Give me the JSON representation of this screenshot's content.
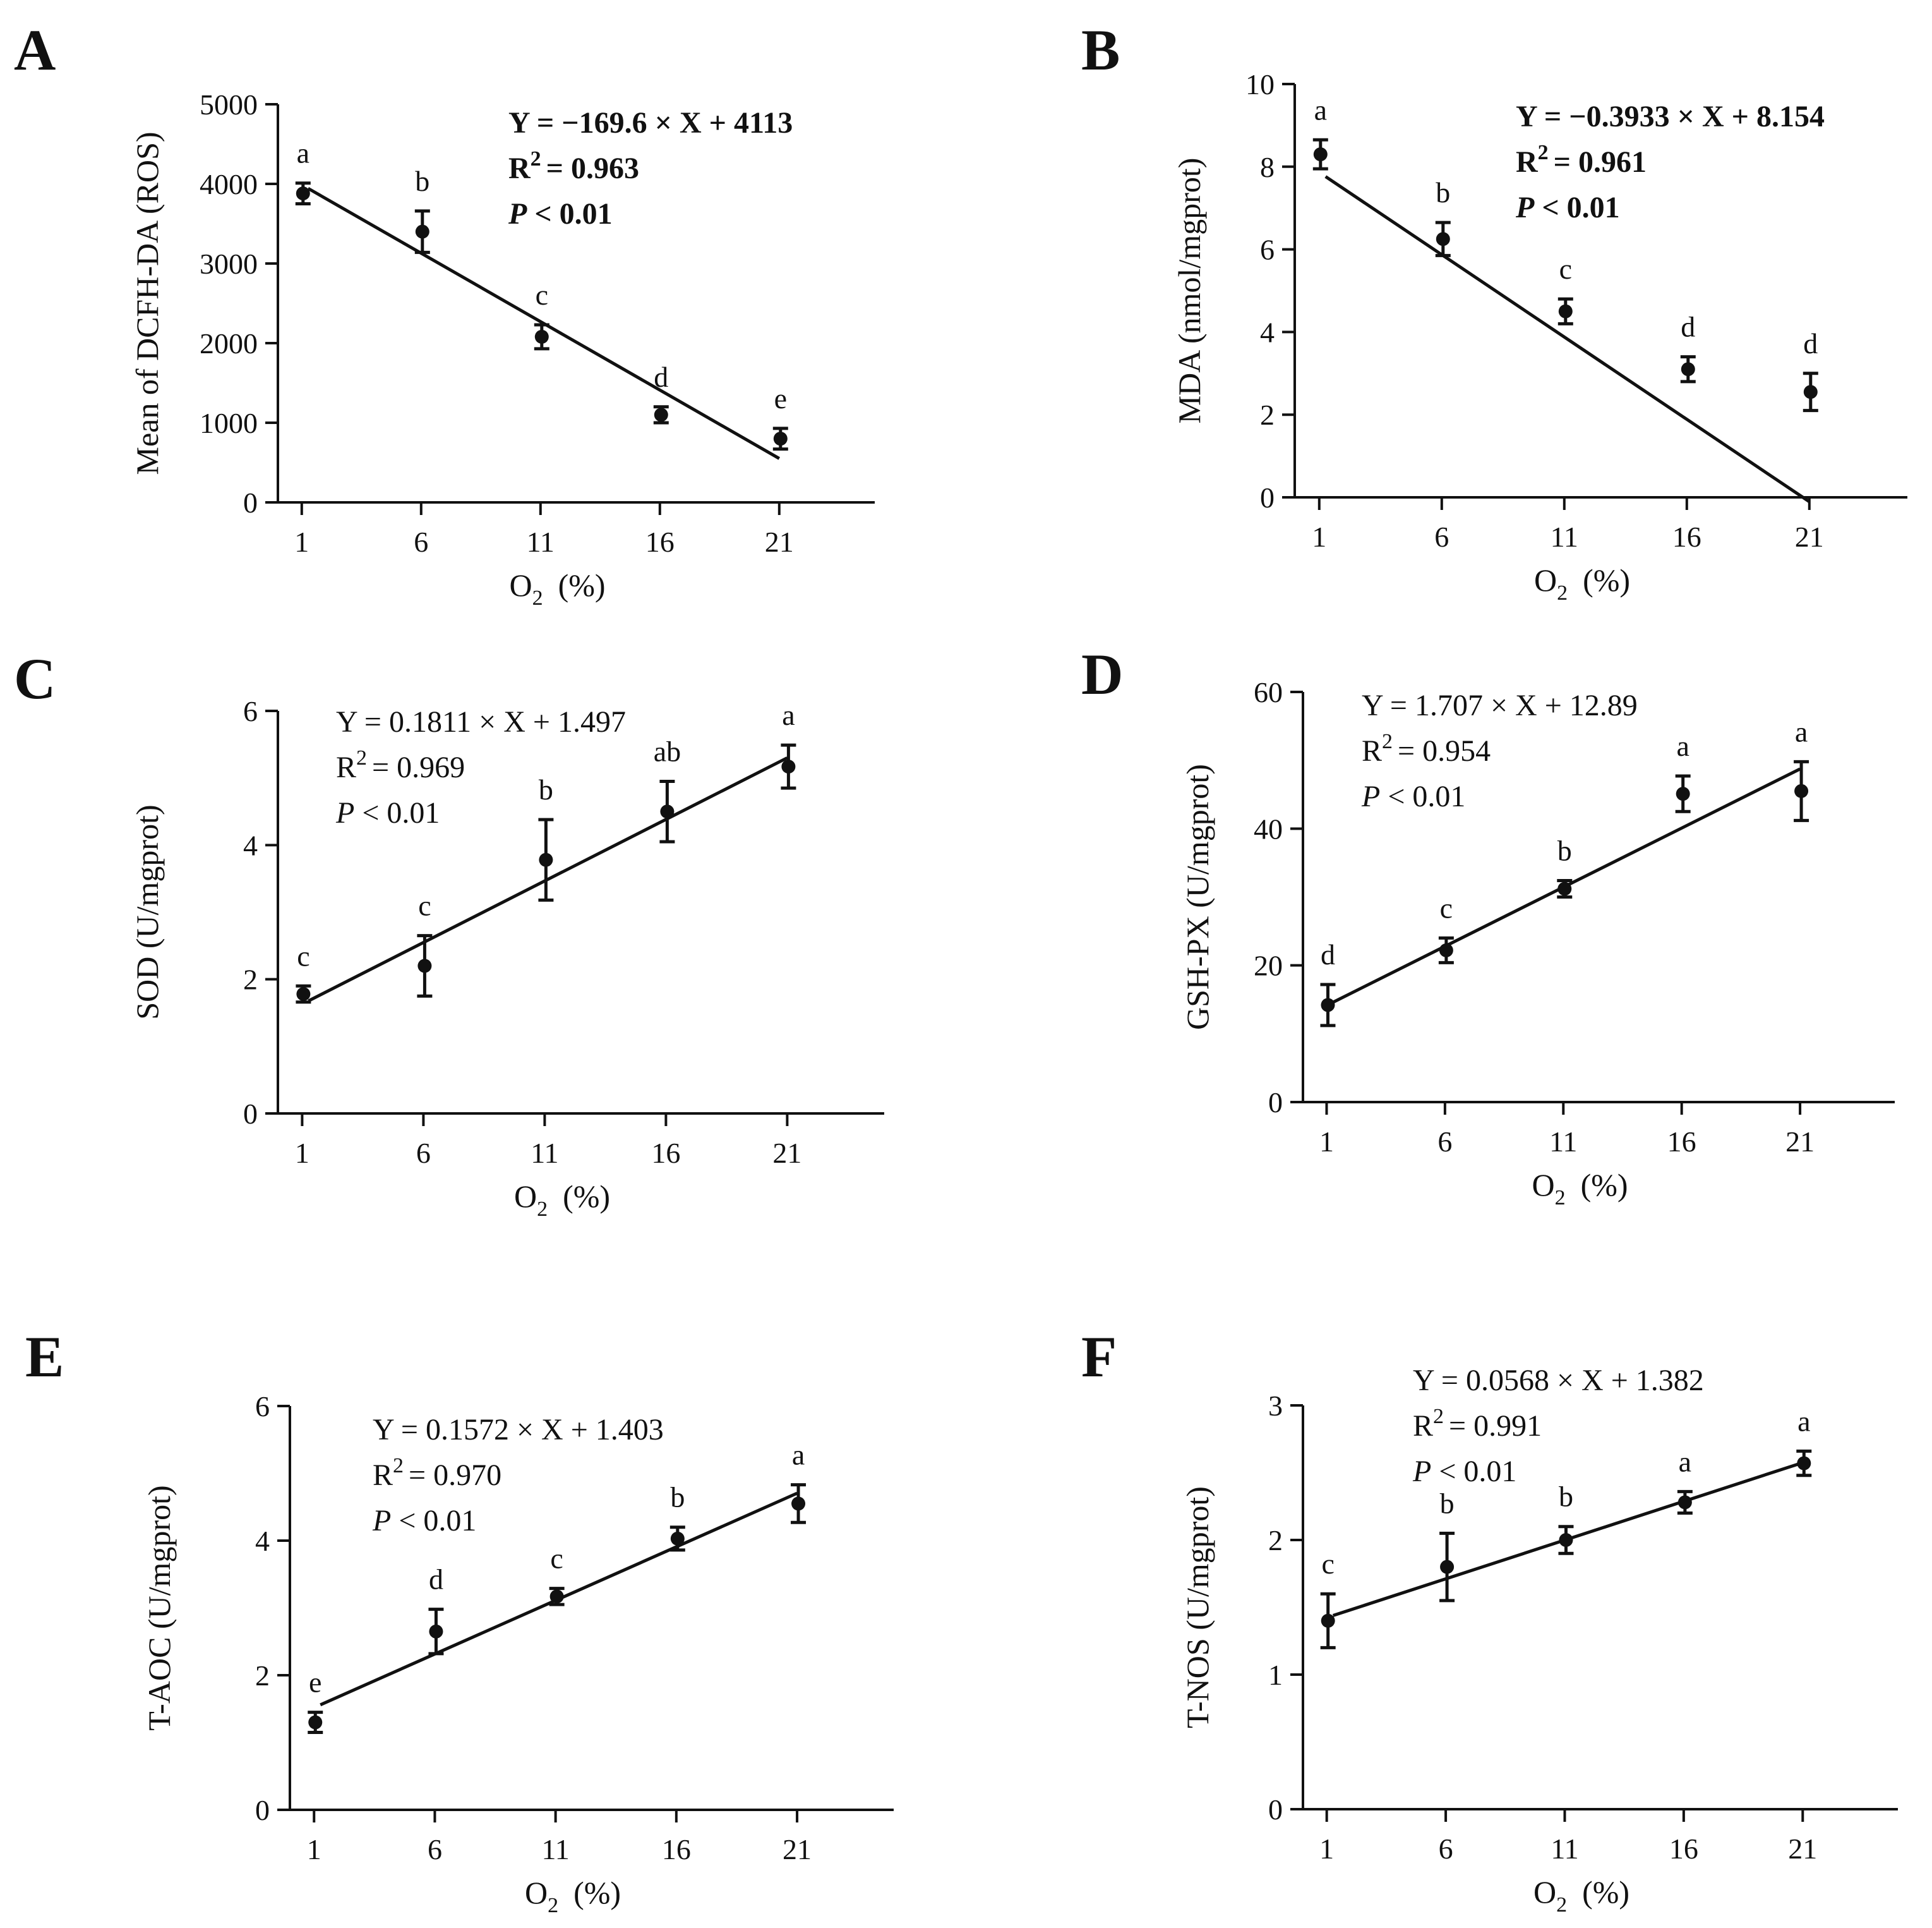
{
  "chart_data": [
    {
      "type": "scatter",
      "panel": "A",
      "ylabel": "Mean of DCFH-DA (ROS)",
      "xlabel": "O",
      "xlabel_sub": "2",
      "xlabel_unit": "(%)",
      "x": [
        1,
        6,
        11,
        16,
        21
      ],
      "xticks": [
        "1",
        "6",
        "11",
        "16",
        "21"
      ],
      "xlim": [
        0,
        25
      ],
      "ylim": [
        0,
        5000
      ],
      "yticks": [
        0,
        1000,
        2000,
        3000,
        4000,
        5000
      ],
      "ytick_labels": [
        "0",
        "1000",
        "2000",
        "3000",
        "4000",
        "5000"
      ],
      "series": [
        {
          "name": "mean",
          "values": [
            3880,
            3400,
            2080,
            1100,
            800
          ],
          "errors": [
            130,
            260,
            150,
            100,
            130
          ]
        }
      ],
      "letters": [
        "a",
        "b",
        "c",
        "d",
        "e"
      ],
      "fit": {
        "slope": -169.6,
        "intercept": 4113
      },
      "equation": {
        "eq": "Y = −169.6 × X + 4113",
        "r_lead": "R",
        "r_sup": "2",
        "r_val": "= 0.963",
        "p_var": "P",
        "p_rest": " < 0.01",
        "bold": true
      }
    },
    {
      "type": "scatter",
      "panel": "B",
      "ylabel": "MDA (nmol/mgprot)",
      "xlabel": "O",
      "xlabel_sub": "2",
      "xlabel_unit": "(%)",
      "x": [
        1,
        6,
        11,
        16,
        21
      ],
      "xticks": [
        "1",
        "6",
        "11",
        "16",
        "21"
      ],
      "xlim": [
        0,
        25
      ],
      "ylim": [
        0,
        10
      ],
      "yticks": [
        0,
        2,
        4,
        6,
        8,
        10
      ],
      "ytick_labels": [
        "0",
        "2",
        "4",
        "6",
        "8",
        "10"
      ],
      "series": [
        {
          "name": "mean",
          "values": [
            8.3,
            6.25,
            4.5,
            3.1,
            2.55
          ],
          "errors": [
            0.35,
            0.4,
            0.3,
            0.3,
            0.45
          ]
        }
      ],
      "letters": [
        "a",
        "b",
        "c",
        "d",
        "d"
      ],
      "fit": {
        "slope": -0.3933,
        "intercept": 8.154
      },
      "equation": {
        "eq": "Y = −0.3933 × X + 8.154",
        "r_lead": "R",
        "r_sup": "2",
        "r_val": "= 0.961",
        "p_var": "P",
        "p_rest": " < 0.01",
        "bold": true
      }
    },
    {
      "type": "scatter",
      "panel": "C",
      "ylabel": "SOD (U/mgprot)",
      "xlabel": "O",
      "xlabel_sub": "2",
      "xlabel_unit": "(%)",
      "x": [
        1,
        6,
        11,
        16,
        21
      ],
      "xticks": [
        "1",
        "6",
        "11",
        "16",
        "21"
      ],
      "xlim": [
        0,
        25
      ],
      "ylim": [
        0,
        6
      ],
      "yticks": [
        0,
        2,
        4,
        6
      ],
      "ytick_labels": [
        "0",
        "2",
        "4",
        "6"
      ],
      "series": [
        {
          "name": "mean",
          "values": [
            1.78,
            2.2,
            3.78,
            4.5,
            5.17
          ],
          "errors": [
            0.12,
            0.45,
            0.6,
            0.45,
            0.32
          ]
        }
      ],
      "letters": [
        "c",
        "c",
        "b",
        "ab",
        "a"
      ],
      "fit": {
        "slope": 0.1811,
        "intercept": 1.497
      },
      "equation": {
        "eq": "Y = 0.1811 × X + 1.497",
        "r_lead": "R",
        "r_sup": "2",
        "r_val": "= 0.969",
        "p_var": "P",
        "p_rest": " < 0.01",
        "bold": false
      }
    },
    {
      "type": "scatter",
      "panel": "D",
      "ylabel": "GSH-PX (U/mgprot)",
      "xlabel": "O",
      "xlabel_sub": "2",
      "xlabel_unit": "(%)",
      "x": [
        1,
        6,
        11,
        16,
        21
      ],
      "xticks": [
        "1",
        "6",
        "11",
        "16",
        "21"
      ],
      "xlim": [
        0,
        25
      ],
      "ylim": [
        0,
        60
      ],
      "yticks": [
        0,
        20,
        40,
        60
      ],
      "ytick_labels": [
        "0",
        "20",
        "40",
        "60"
      ],
      "series": [
        {
          "name": "mean",
          "values": [
            14.2,
            22.2,
            31.2,
            45.1,
            45.5
          ],
          "errors": [
            3.0,
            1.8,
            1.2,
            2.6,
            4.3
          ]
        }
      ],
      "letters": [
        "d",
        "c",
        "b",
        "a",
        "a"
      ],
      "fit": {
        "slope": 1.707,
        "intercept": 12.89
      },
      "equation": {
        "eq": "Y = 1.707 × X + 12.89",
        "r_lead": "R",
        "r_sup": "2",
        "r_val": "= 0.954",
        "p_var": "P",
        "p_rest": " < 0.01",
        "bold": false
      }
    },
    {
      "type": "scatter",
      "panel": "E",
      "ylabel": "T-AOC (U/mgprot)",
      "xlabel": "O",
      "xlabel_sub": "2",
      "xlabel_unit": "(%)",
      "x": [
        1,
        6,
        11,
        16,
        21
      ],
      "xticks": [
        "1",
        "6",
        "11",
        "16",
        "21"
      ],
      "xlim": [
        0,
        25
      ],
      "ylim": [
        0,
        6
      ],
      "yticks": [
        0,
        2,
        4,
        6
      ],
      "ytick_labels": [
        "0",
        "2",
        "4",
        "6"
      ],
      "series": [
        {
          "name": "mean",
          "values": [
            1.3,
            2.65,
            3.17,
            4.03,
            4.55
          ],
          "errors": [
            0.15,
            0.33,
            0.12,
            0.17,
            0.28
          ]
        }
      ],
      "letters": [
        "e",
        "d",
        "c",
        "b",
        "a"
      ],
      "fit": {
        "slope": 0.1572,
        "intercept": 1.403
      },
      "equation": {
        "eq": "Y = 0.1572 × X + 1.403",
        "r_lead": "R",
        "r_sup": "2",
        "r_val": "= 0.970",
        "p_var": "P",
        "p_rest": " < 0.01",
        "bold": false
      }
    },
    {
      "type": "scatter",
      "panel": "F",
      "ylabel": "T-NOS (U/mgprot)",
      "xlabel": "O",
      "xlabel_sub": "2",
      "xlabel_unit": "(%)",
      "x": [
        1,
        6,
        11,
        16,
        21
      ],
      "xticks": [
        "1",
        "6",
        "11",
        "16",
        "21"
      ],
      "xlim": [
        0,
        25
      ],
      "ylim": [
        0,
        3
      ],
      "yticks": [
        0,
        1,
        2,
        3
      ],
      "ytick_labels": [
        "0",
        "1",
        "2",
        "3"
      ],
      "series": [
        {
          "name": "mean",
          "values": [
            1.4,
            1.8,
            2.0,
            2.28,
            2.57
          ],
          "errors": [
            0.2,
            0.25,
            0.1,
            0.08,
            0.09
          ]
        }
      ],
      "letters": [
        "c",
        "b",
        "b",
        "a",
        "a"
      ],
      "fit": {
        "slope": 0.0568,
        "intercept": 1.382
      },
      "equation": {
        "eq": "Y = 0.0568 × X + 1.382",
        "r_lead": "R",
        "r_sup": "2",
        "r_val": "= 0.991",
        "p_var": "P",
        "p_rest": " < 0.01",
        "bold": false
      }
    }
  ]
}
